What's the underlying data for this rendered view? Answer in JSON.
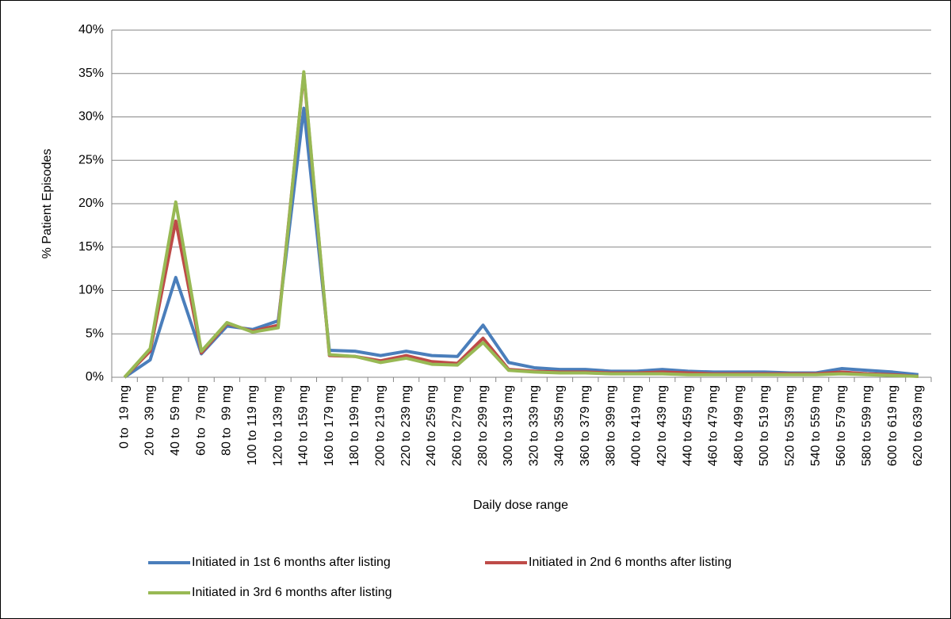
{
  "chart_data": {
    "type": "line",
    "x_label": "Daily dose range",
    "y_label": "% Patient Episodes",
    "categories": [
      "0 to  19 mg",
      "20 to  39 mg",
      "40 to  59 mg",
      "60 to  79 mg",
      "80 to  99 mg",
      "100 to 119 mg",
      "120 to 139 mg",
      "140 to 159 mg",
      "160 to 179 mg",
      "180 to 199 mg",
      "200 to 219 mg",
      "220 to 239 mg",
      "240 to 259 mg",
      "260 to 279 mg",
      "280 to 299 mg",
      "300 to 319 mg",
      "320 to 339 mg",
      "340 to 359 mg",
      "360 to 379 mg",
      "380 to 399 mg",
      "400 to 419 mg",
      "420 to 439 mg",
      "440 to 459 mg",
      "460 to 479 mg",
      "480 to 499 mg",
      "500 to 519 mg",
      "520 to 539 mg",
      "540 to 559 mg",
      "560 to 579 mg",
      "580 to 599 mg",
      "600 to 619 mg",
      "620 to 639 mg"
    ],
    "series": [
      {
        "name": "Initiated in 1st 6 months after listing",
        "color": "#4a7ebb",
        "values": [
          0,
          2,
          11.5,
          2.7,
          5.9,
          5.5,
          6.5,
          31,
          3.1,
          3.0,
          2.5,
          3.0,
          2.5,
          2.4,
          6.0,
          1.7,
          1.1,
          0.9,
          0.9,
          0.7,
          0.7,
          0.9,
          0.7,
          0.6,
          0.6,
          0.6,
          0.5,
          0.5,
          1.0,
          0.8,
          0.6,
          0.3
        ]
      },
      {
        "name": "Initiated in 2nd 6 months after listing",
        "color": "#be4b48",
        "values": [
          0,
          3,
          18,
          2.8,
          6.2,
          5.3,
          6.0,
          35,
          2.5,
          2.4,
          1.9,
          2.5,
          1.8,
          1.6,
          4.5,
          0.9,
          0.7,
          0.6,
          0.6,
          0.5,
          0.5,
          0.6,
          0.5,
          0.4,
          0.4,
          0.4,
          0.4,
          0.4,
          0.6,
          0.4,
          0.3,
          0.1
        ]
      },
      {
        "name": "Initiated in 3rd 6 months after listing",
        "color": "#98b954",
        "values": [
          0,
          3.3,
          20.2,
          3.0,
          6.3,
          5.2,
          5.7,
          35.2,
          2.6,
          2.4,
          1.7,
          2.2,
          1.5,
          1.4,
          4.0,
          0.8,
          0.6,
          0.5,
          0.5,
          0.4,
          0.4,
          0.4,
          0.3,
          0.3,
          0.3,
          0.3,
          0.3,
          0.3,
          0.4,
          0.3,
          0.2,
          0.1
        ]
      }
    ],
    "ylim": [
      0,
      40
    ],
    "yticks": [
      {
        "value": 0,
        "label": "0%"
      },
      {
        "value": 5,
        "label": "5%"
      },
      {
        "value": 10,
        "label": "10%"
      },
      {
        "value": 15,
        "label": "15%"
      },
      {
        "value": 20,
        "label": "20%"
      },
      {
        "value": 25,
        "label": "25%"
      },
      {
        "value": 30,
        "label": "30%"
      },
      {
        "value": 35,
        "label": "35%"
      },
      {
        "value": 40,
        "label": "40%"
      }
    ],
    "grid": true
  }
}
